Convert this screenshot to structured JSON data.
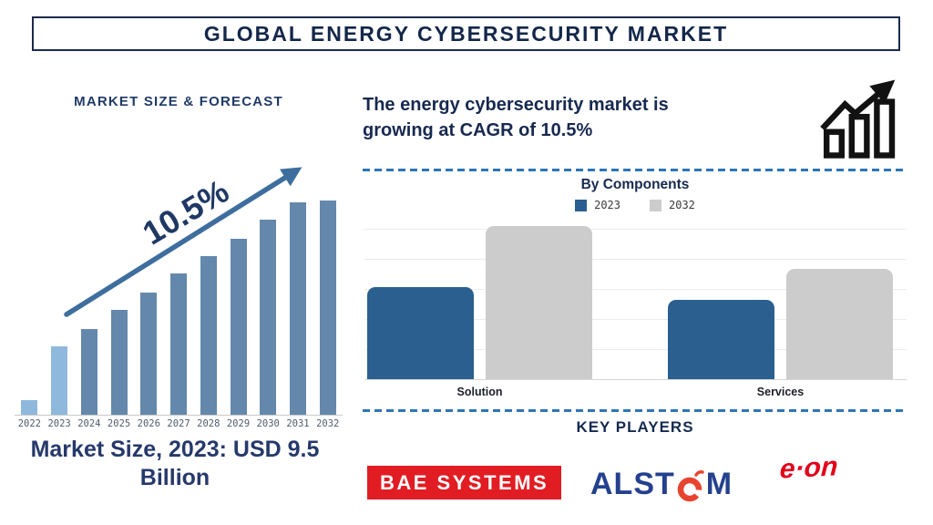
{
  "colors": {
    "navy_text": "#17294F",
    "heading_navy": "#1F3864",
    "steel_blue_bar": "#6488AC",
    "light_blue_bar": "#8FB8DD",
    "arrow_blue": "#3E6E9E",
    "components_blue": "#2A5F8F",
    "components_gray": "#CCCCCC",
    "divider_blue": "#2E75B6",
    "bae_red": "#E11C23",
    "alstom_navy": "#24418E",
    "alstom_orange": "#E8432E",
    "eon_red": "#E2001A"
  },
  "header": {
    "title": "GLOBAL ENERGY CYBERSECURITY MARKET"
  },
  "left_panel": {
    "heading": "MARKET SIZE & FORECAST",
    "cagr_annotation": "10.5%",
    "caption": "Market Size, 2023: USD 9.5 Billion"
  },
  "right_panel": {
    "statement_line1": "The energy cybersecurity market is",
    "statement_line2": "growing at CAGR of 10.5%",
    "components": {
      "title": "By Components",
      "legend": [
        {
          "label": "2023",
          "color": "#2A5F8F"
        },
        {
          "label": "2032",
          "color": "#CCCCCC"
        }
      ]
    },
    "key_players": {
      "title": "KEY PLAYERS",
      "logos": [
        {
          "name": "BAE SYSTEMS"
        },
        {
          "name": "ALSTOM",
          "pre": "ALST",
          "post": "M"
        },
        {
          "name": "e.on",
          "text": "e·on"
        }
      ]
    }
  },
  "chart_data": [
    {
      "type": "bar",
      "title": "MARKET SIZE & FORECAST",
      "categories": [
        "2022",
        "2023",
        "2024",
        "2025",
        "2026",
        "2027",
        "2028",
        "2029",
        "2030",
        "2031",
        "2032"
      ],
      "values": [
        7,
        32,
        40,
        49,
        57,
        66,
        74,
        82,
        91,
        99,
        100
      ],
      "values_unit": "relative bar height, % of tallest bar (no y-axis shown)",
      "bar_colors": [
        "#8FB8DD",
        "#8FB8DD",
        "#6488AC",
        "#6488AC",
        "#6488AC",
        "#6488AC",
        "#6488AC",
        "#6488AC",
        "#6488AC",
        "#6488AC",
        "#6488AC"
      ],
      "annotation": "10.5%",
      "known_point": "Market Size, 2023: USD 9.5 Billion",
      "xlabel": "",
      "ylabel": "",
      "grid": false
    },
    {
      "type": "bar",
      "title": "By Components",
      "categories": [
        "Solution",
        "Services"
      ],
      "series": [
        {
          "name": "2023",
          "color": "#2A5F8F",
          "values": [
            60,
            52
          ]
        },
        {
          "name": "2032",
          "color": "#CCCCCC",
          "values": [
            100,
            72
          ]
        }
      ],
      "values_unit": "relative bar height, % of tallest bar (no y-axis shown)",
      "grid": true,
      "legend_position": "top",
      "ylim": [
        0,
        100
      ]
    }
  ]
}
